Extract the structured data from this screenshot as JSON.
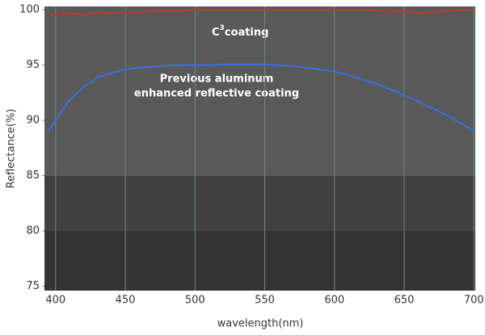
{
  "chart_data": {
    "type": "line",
    "x_label": "wavelength(nm)",
    "y_label": "Reflectance(%)",
    "annotations": [
      {
        "text": "C",
        "sup": "3",
        "rest": "coating"
      },
      {
        "lines": [
          "Previous aluminum",
          "enhanced reflective coating"
        ]
      }
    ],
    "x": [
      395,
      400,
      410,
      420,
      430,
      440,
      450,
      460,
      470,
      480,
      490,
      500,
      510,
      520,
      530,
      540,
      550,
      560,
      570,
      580,
      590,
      600,
      610,
      620,
      630,
      640,
      650,
      660,
      670,
      680,
      690,
      700
    ],
    "series": [
      {
        "name": "C3 coating",
        "color": "#c0392b",
        "values": [
          99.6,
          99.5,
          99.7,
          99.5,
          99.8,
          99.7,
          99.8,
          99.8,
          99.9,
          99.9,
          99.9,
          100,
          100,
          100,
          100,
          100,
          100,
          100,
          100,
          100,
          100,
          100,
          100,
          100,
          100,
          99.8,
          99.9,
          99.7,
          99.8,
          99.9,
          100,
          100
        ]
      },
      {
        "name": "Previous aluminum enhanced reflective coating",
        "color": "#3b6fe0",
        "values": [
          89.0,
          90.0,
          91.8,
          93.0,
          93.9,
          94.3,
          94.6,
          94.75,
          94.85,
          94.95,
          95.0,
          95.0,
          95.0,
          95.05,
          95.05,
          95.05,
          95.05,
          95.0,
          94.9,
          94.75,
          94.6,
          94.4,
          94.1,
          93.7,
          93.3,
          92.8,
          92.3,
          91.7,
          91.1,
          90.5,
          89.8,
          89.0
        ]
      }
    ],
    "xlim": [
      392,
      701
    ],
    "ylim": [
      74.6,
      100.3
    ],
    "xticks": [
      400,
      450,
      500,
      550,
      600,
      650,
      700
    ],
    "yticks": [
      75,
      80,
      85,
      90,
      95,
      100
    ],
    "grid": true
  }
}
